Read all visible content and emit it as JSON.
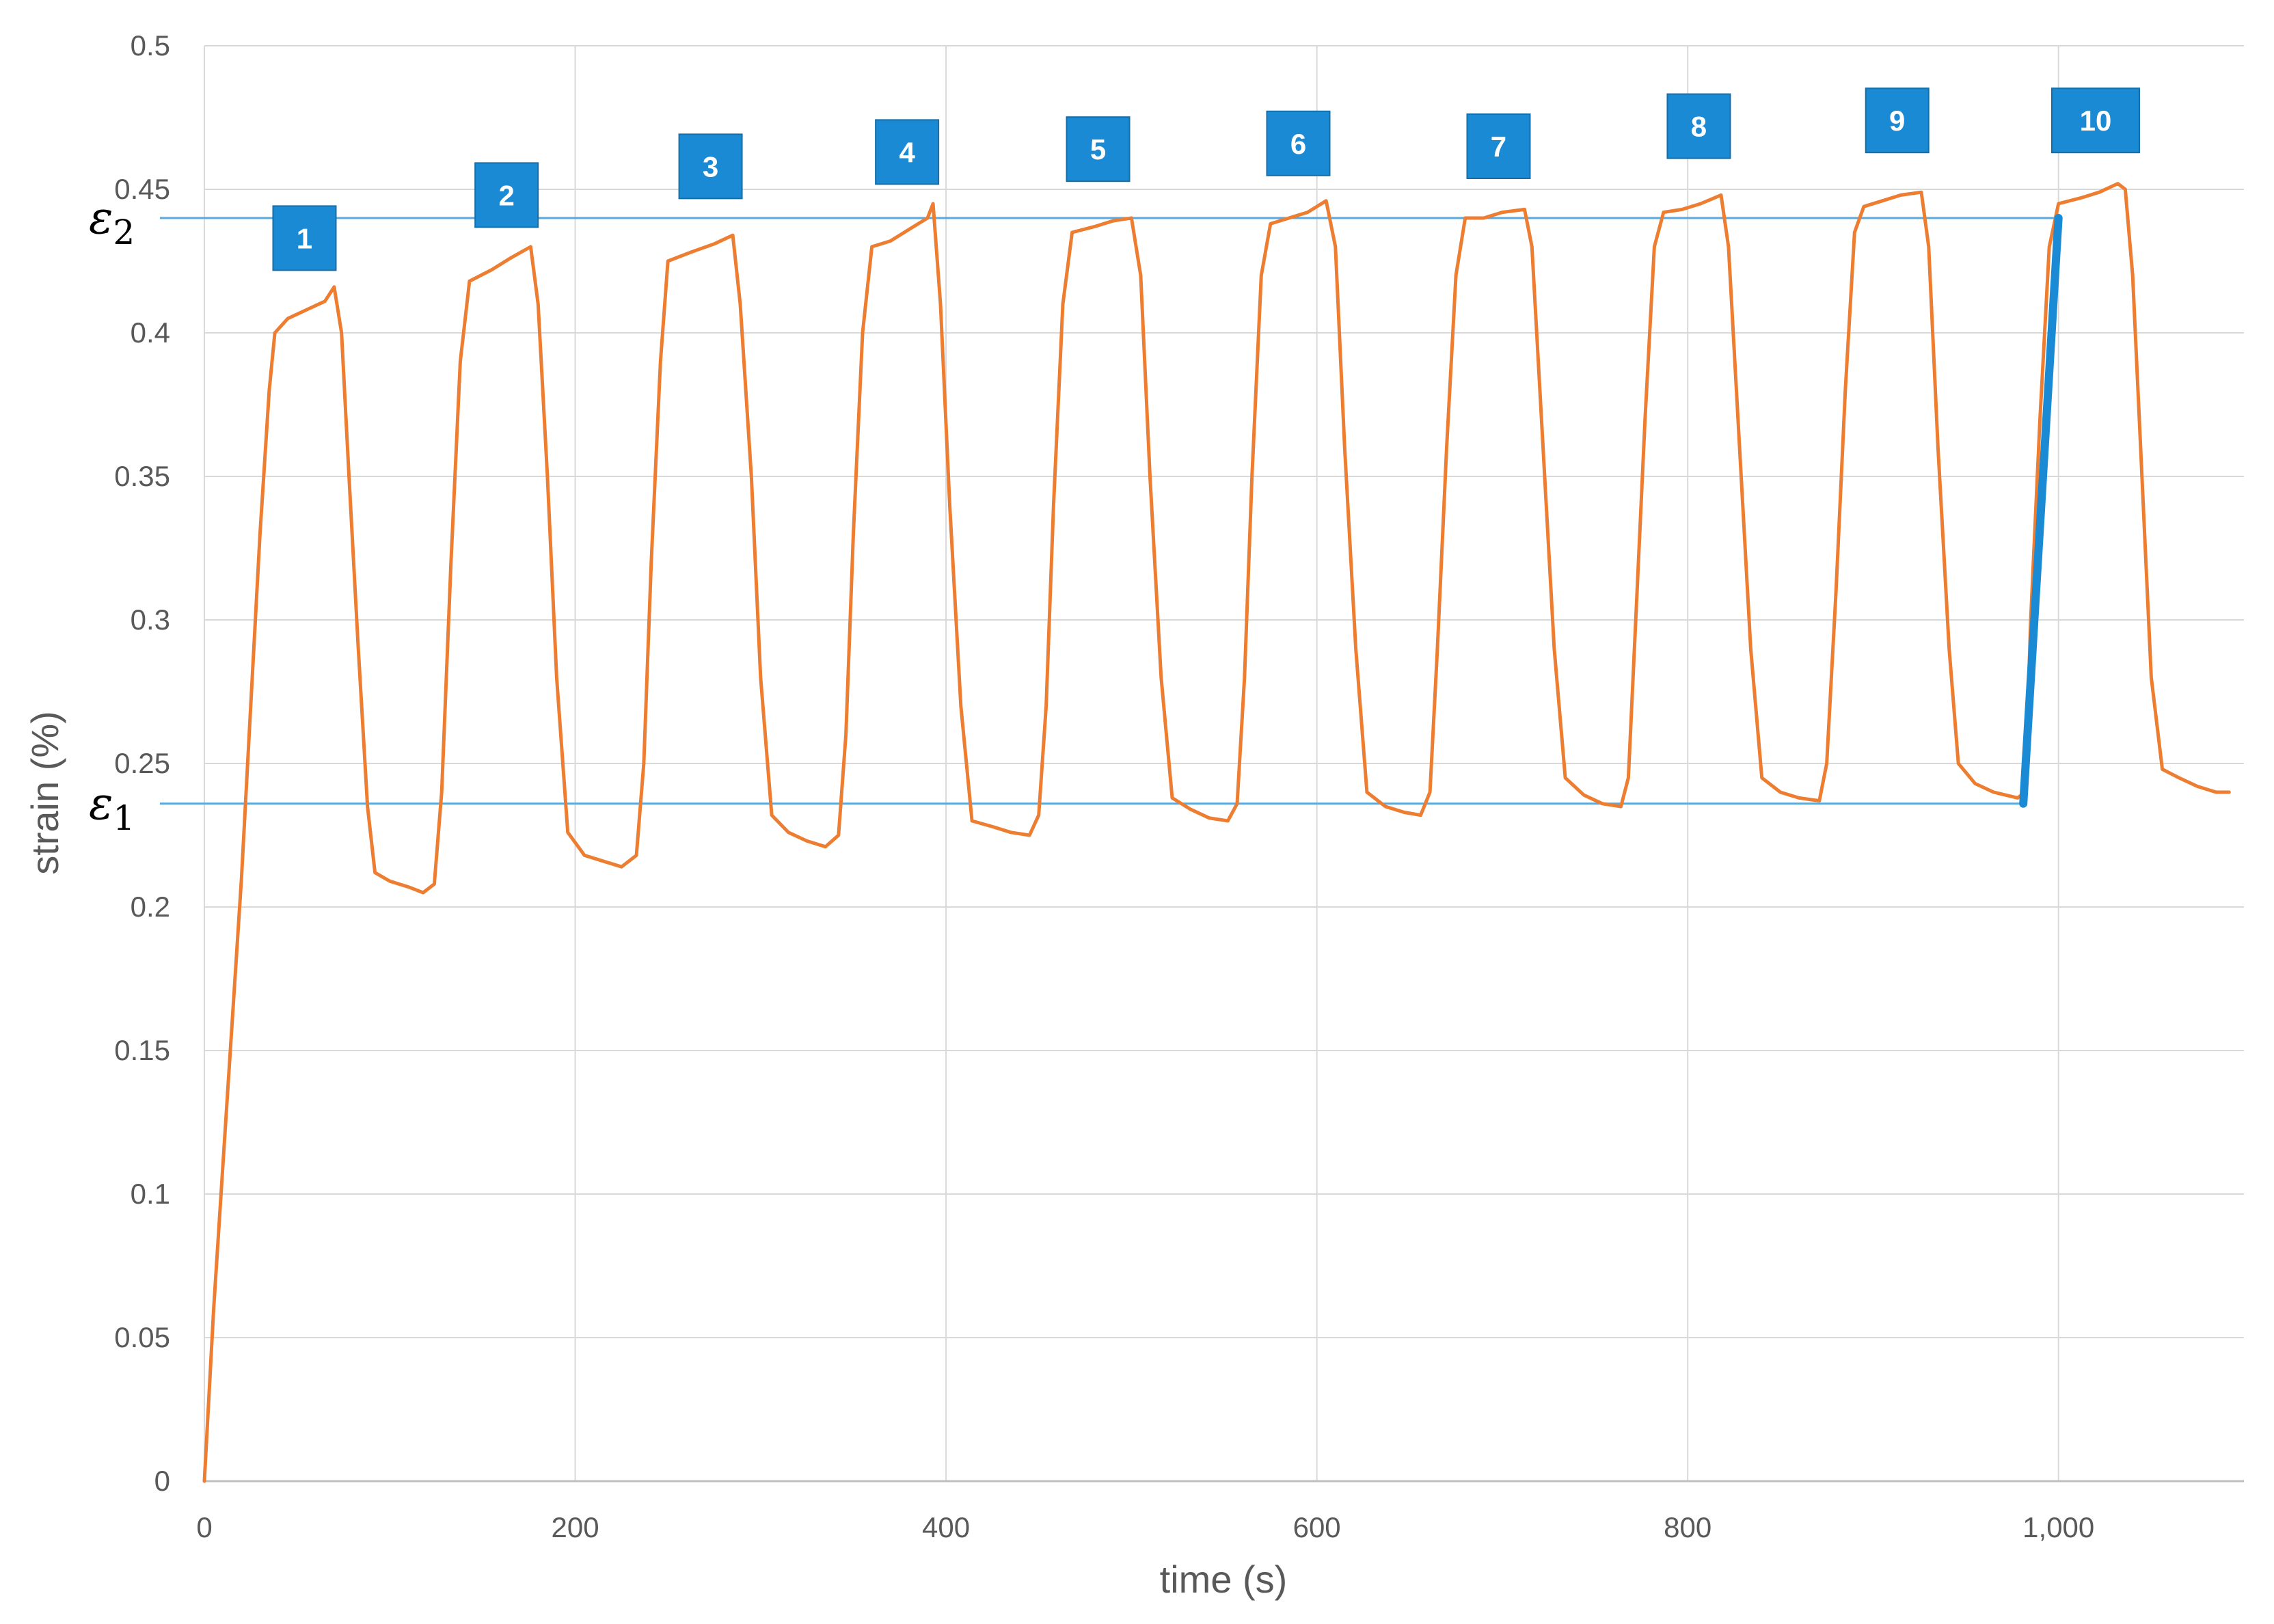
{
  "chart_data": {
    "type": "line",
    "title": "",
    "xlabel": "time (s)",
    "ylabel": "strain (%)",
    "xlim": [
      0,
      1100
    ],
    "ylim": [
      0,
      0.5
    ],
    "x_ticks": [
      0,
      200,
      400,
      600,
      800,
      1000
    ],
    "x_tick_labels": [
      "0",
      "200",
      "400",
      "600",
      "800",
      "1,000"
    ],
    "y_ticks": [
      0,
      0.05,
      0.1,
      0.15,
      0.2,
      0.25,
      0.3,
      0.35,
      0.4,
      0.45,
      0.5
    ],
    "y_tick_labels": [
      "0",
      "0.05",
      "0.1",
      "0.15",
      "0.2",
      "0.25",
      "0.3",
      "0.35",
      "0.4",
      "0.45",
      "0.5"
    ],
    "grid": true,
    "series": [
      {
        "color": "#ed7d31",
        "points": [
          [
            0,
            0
          ],
          [
            5,
            0.06
          ],
          [
            10,
            0.11
          ],
          [
            15,
            0.16
          ],
          [
            20,
            0.21
          ],
          [
            25,
            0.27
          ],
          [
            30,
            0.33
          ],
          [
            35,
            0.38
          ],
          [
            38,
            0.4
          ],
          [
            45,
            0.405
          ],
          [
            55,
            0.408
          ],
          [
            65,
            0.411
          ],
          [
            70,
            0.416
          ],
          [
            74,
            0.4
          ],
          [
            78,
            0.35
          ],
          [
            83,
            0.29
          ],
          [
            88,
            0.235
          ],
          [
            92,
            0.212
          ],
          [
            100,
            0.209
          ],
          [
            110,
            0.207
          ],
          [
            118,
            0.205
          ],
          [
            124,
            0.208
          ],
          [
            128,
            0.24
          ],
          [
            133,
            0.32
          ],
          [
            138,
            0.39
          ],
          [
            143,
            0.418
          ],
          [
            155,
            0.422
          ],
          [
            165,
            0.426
          ],
          [
            176,
            0.43
          ],
          [
            180,
            0.41
          ],
          [
            185,
            0.35
          ],
          [
            190,
            0.28
          ],
          [
            196,
            0.226
          ],
          [
            205,
            0.218
          ],
          [
            215,
            0.216
          ],
          [
            225,
            0.214
          ],
          [
            233,
            0.218
          ],
          [
            237,
            0.25
          ],
          [
            241,
            0.32
          ],
          [
            246,
            0.39
          ],
          [
            250,
            0.425
          ],
          [
            262,
            0.428
          ],
          [
            275,
            0.431
          ],
          [
            285,
            0.434
          ],
          [
            289,
            0.41
          ],
          [
            295,
            0.35
          ],
          [
            300,
            0.28
          ],
          [
            306,
            0.232
          ],
          [
            315,
            0.226
          ],
          [
            325,
            0.223
          ],
          [
            335,
            0.221
          ],
          [
            342,
            0.225
          ],
          [
            346,
            0.26
          ],
          [
            350,
            0.33
          ],
          [
            355,
            0.4
          ],
          [
            360,
            0.43
          ],
          [
            370,
            0.432
          ],
          [
            380,
            0.436
          ],
          [
            390,
            0.44
          ],
          [
            393,
            0.445
          ],
          [
            397,
            0.41
          ],
          [
            402,
            0.34
          ],
          [
            408,
            0.27
          ],
          [
            414,
            0.23
          ],
          [
            425,
            0.228
          ],
          [
            435,
            0.226
          ],
          [
            445,
            0.225
          ],
          [
            450,
            0.232
          ],
          [
            454,
            0.27
          ],
          [
            458,
            0.34
          ],
          [
            463,
            0.41
          ],
          [
            468,
            0.435
          ],
          [
            480,
            0.437
          ],
          [
            490,
            0.439
          ],
          [
            500,
            0.44
          ],
          [
            505,
            0.42
          ],
          [
            510,
            0.35
          ],
          [
            516,
            0.28
          ],
          [
            522,
            0.238
          ],
          [
            532,
            0.234
          ],
          [
            542,
            0.231
          ],
          [
            552,
            0.23
          ],
          [
            557,
            0.236
          ],
          [
            561,
            0.28
          ],
          [
            565,
            0.35
          ],
          [
            570,
            0.42
          ],
          [
            575,
            0.438
          ],
          [
            585,
            0.44
          ],
          [
            595,
            0.442
          ],
          [
            605,
            0.446
          ],
          [
            610,
            0.43
          ],
          [
            615,
            0.36
          ],
          [
            621,
            0.29
          ],
          [
            627,
            0.24
          ],
          [
            637,
            0.235
          ],
          [
            647,
            0.233
          ],
          [
            656,
            0.232
          ],
          [
            661,
            0.24
          ],
          [
            665,
            0.29
          ],
          [
            670,
            0.36
          ],
          [
            675,
            0.42
          ],
          [
            680,
            0.44
          ],
          [
            690,
            0.44
          ],
          [
            700,
            0.442
          ],
          [
            712,
            0.443
          ],
          [
            716,
            0.43
          ],
          [
            722,
            0.36
          ],
          [
            728,
            0.29
          ],
          [
            734,
            0.245
          ],
          [
            744,
            0.239
          ],
          [
            754,
            0.236
          ],
          [
            764,
            0.235
          ],
          [
            768,
            0.245
          ],
          [
            772,
            0.3
          ],
          [
            777,
            0.37
          ],
          [
            782,
            0.43
          ],
          [
            787,
            0.442
          ],
          [
            797,
            0.443
          ],
          [
            807,
            0.445
          ],
          [
            818,
            0.448
          ],
          [
            822,
            0.43
          ],
          [
            828,
            0.36
          ],
          [
            834,
            0.29
          ],
          [
            840,
            0.245
          ],
          [
            850,
            0.24
          ],
          [
            860,
            0.238
          ],
          [
            871,
            0.237
          ],
          [
            875,
            0.25
          ],
          [
            880,
            0.31
          ],
          [
            885,
            0.38
          ],
          [
            890,
            0.435
          ],
          [
            895,
            0.444
          ],
          [
            905,
            0.446
          ],
          [
            915,
            0.448
          ],
          [
            926,
            0.449
          ],
          [
            930,
            0.43
          ],
          [
            935,
            0.36
          ],
          [
            941,
            0.29
          ],
          [
            946,
            0.25
          ],
          [
            955,
            0.243
          ],
          [
            965,
            0.24
          ],
          [
            978,
            0.238
          ],
          [
            982,
            0.24
          ],
          [
            985,
            0.3
          ],
          [
            990,
            0.37
          ],
          [
            995,
            0.43
          ],
          [
            1000,
            0.445
          ],
          [
            1012,
            0.447
          ],
          [
            1022,
            0.449
          ],
          [
            1032,
            0.452
          ],
          [
            1036,
            0.45
          ],
          [
            1040,
            0.42
          ],
          [
            1045,
            0.35
          ],
          [
            1050,
            0.28
          ],
          [
            1056,
            0.248
          ],
          [
            1065,
            0.245
          ],
          [
            1075,
            0.242
          ],
          [
            1085,
            0.24
          ],
          [
            1092,
            0.24
          ]
        ]
      },
      {
        "color": "#1a8ad4",
        "points": [
          [
            981,
            0.236
          ],
          [
            1000,
            0.44
          ]
        ]
      }
    ],
    "reference_lines": [
      {
        "label": "ε",
        "subscript": "2",
        "y": 0.44,
        "x_start": -24,
        "x_end": 1002,
        "color": "#5ba8dc"
      },
      {
        "label": "ε",
        "subscript": "1",
        "y": 0.236,
        "x_start": -24,
        "x_end": 981,
        "color": "#5ba8dc"
      }
    ],
    "callouts": [
      {
        "text": "1",
        "x": 54,
        "y": 0.433
      },
      {
        "text": "2",
        "x": 163,
        "y": 0.448
      },
      {
        "text": "3",
        "x": 273,
        "y": 0.458
      },
      {
        "text": "4",
        "x": 379,
        "y": 0.463
      },
      {
        "text": "5",
        "x": 482,
        "y": 0.464
      },
      {
        "text": "6",
        "x": 590,
        "y": 0.466
      },
      {
        "text": "7",
        "x": 698,
        "y": 0.465
      },
      {
        "text": "8",
        "x": 806,
        "y": 0.472
      },
      {
        "text": "9",
        "x": 913,
        "y": 0.474
      },
      {
        "text": "10",
        "x": 1020,
        "y": 0.474
      }
    ],
    "callout_color": "#1a8ad4"
  }
}
